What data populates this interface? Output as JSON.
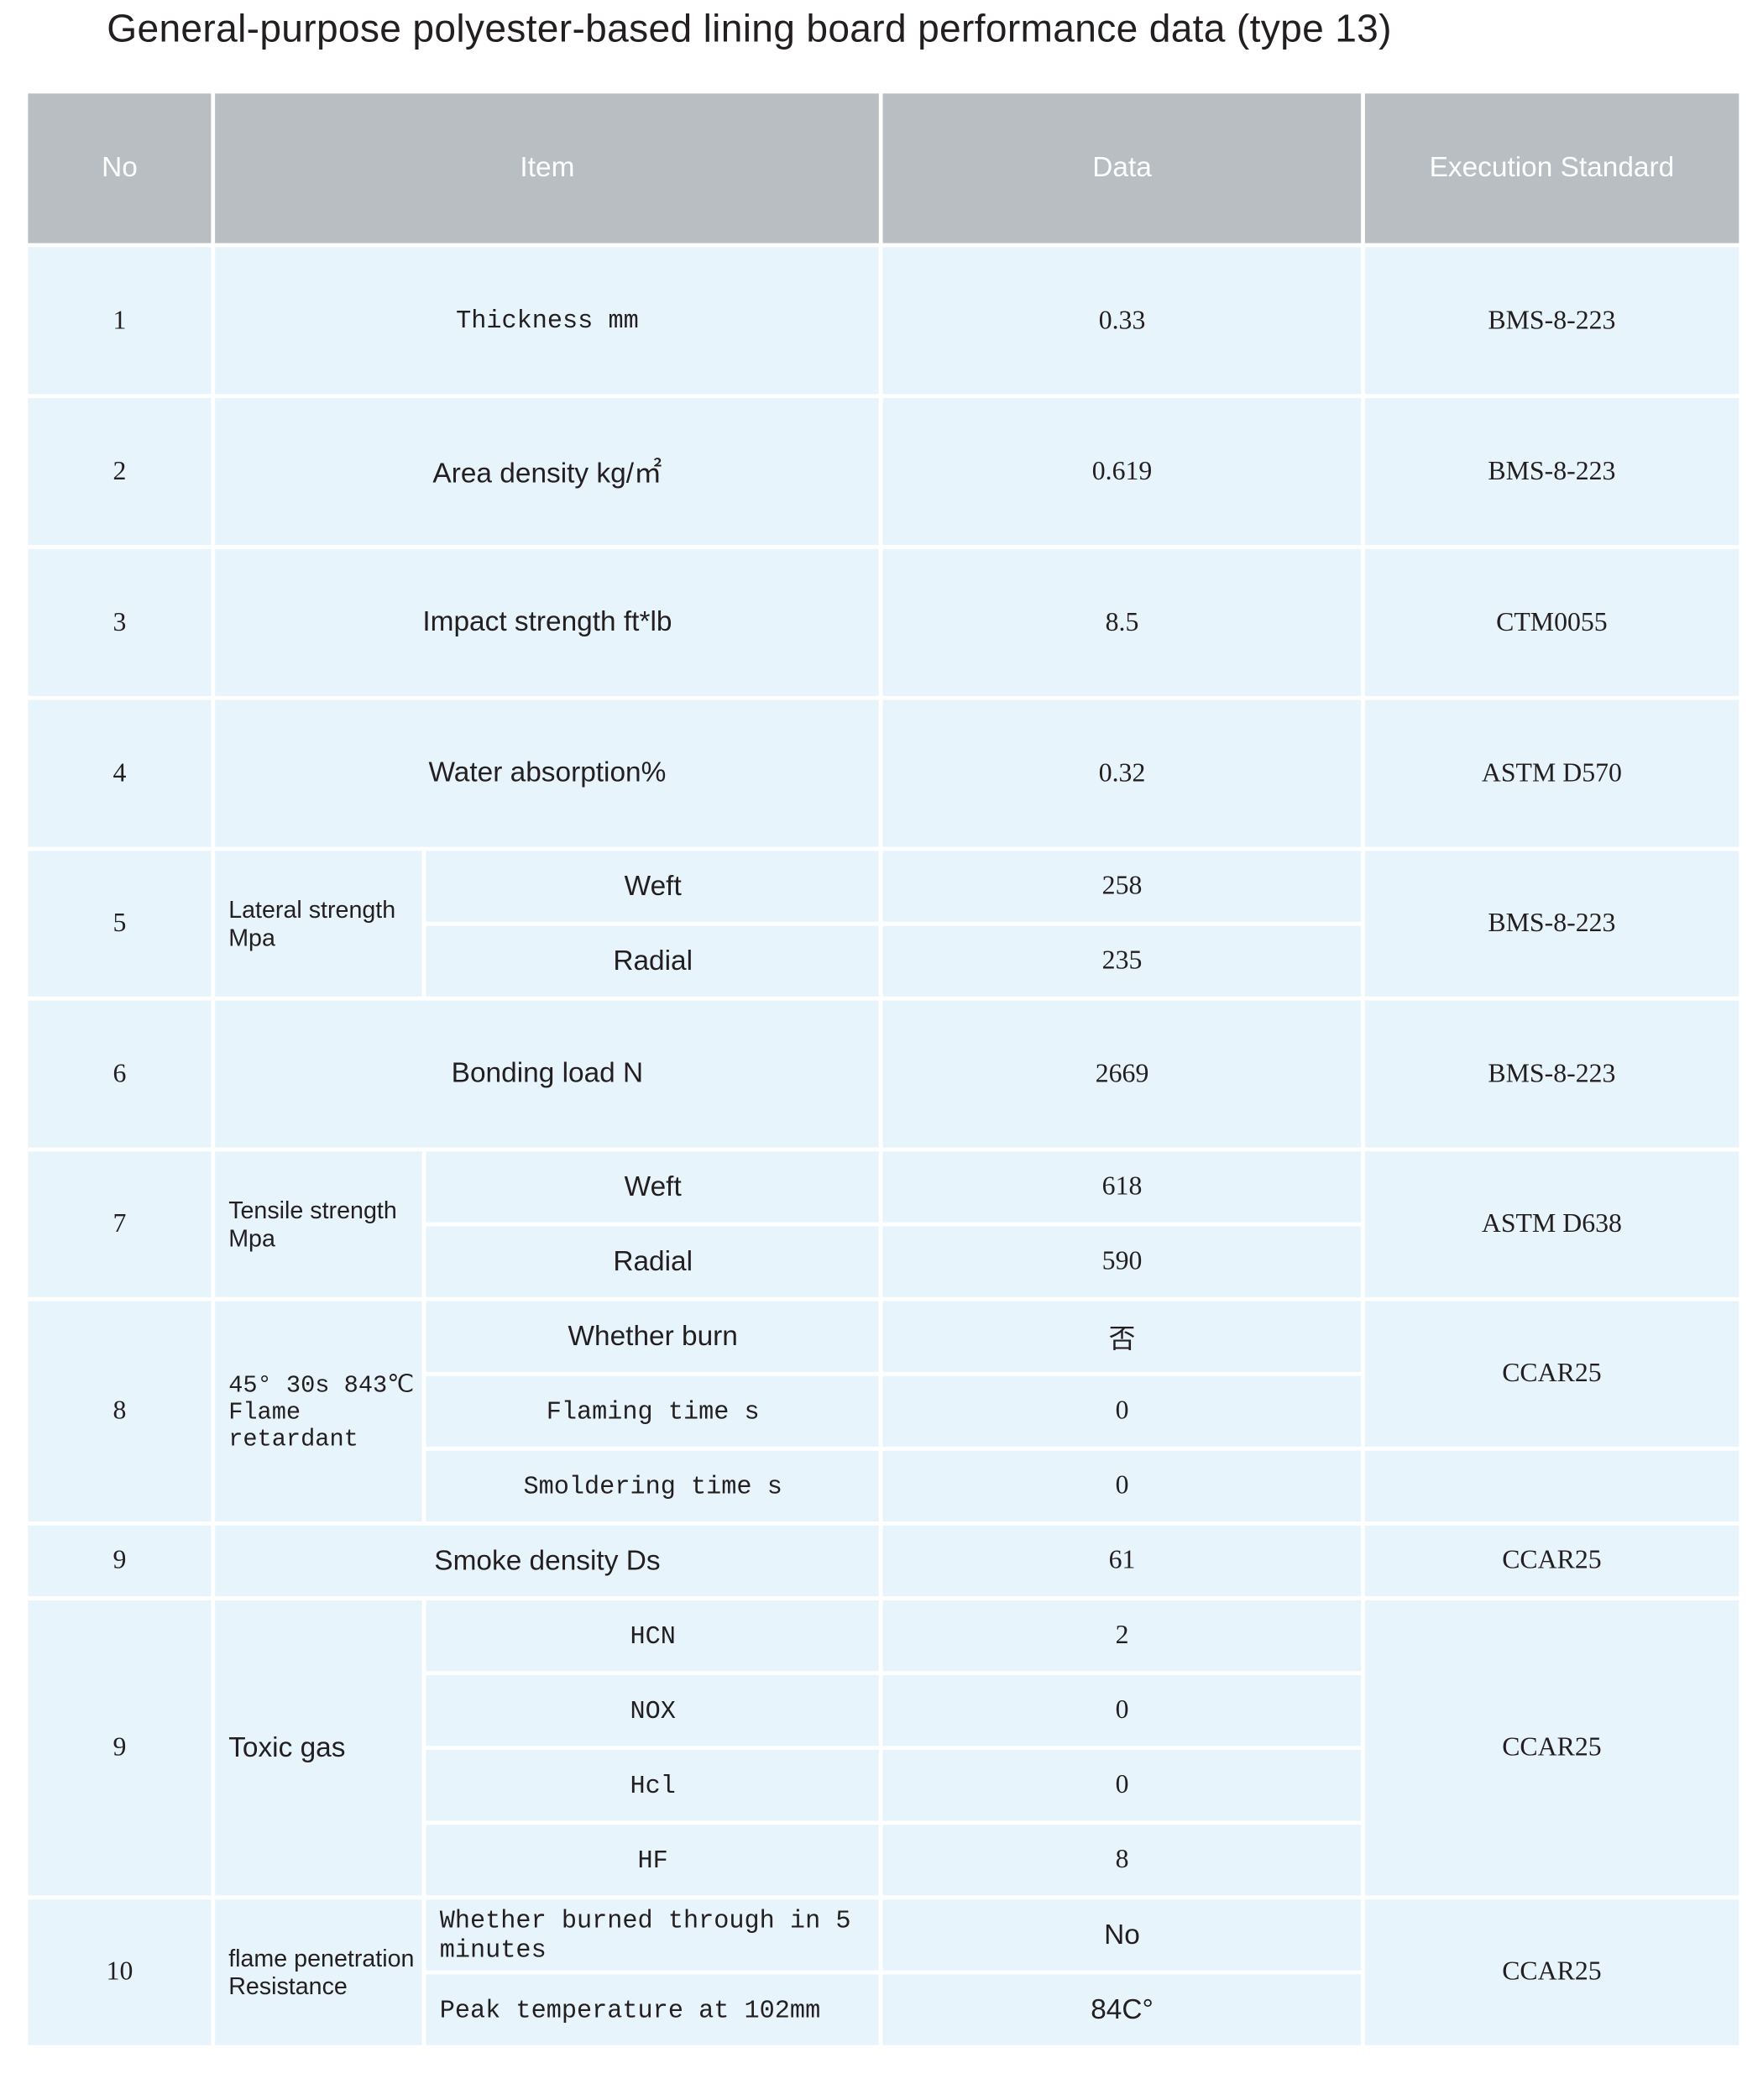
{
  "title": "General-purpose polyester-based lining board performance data (type 13)",
  "colors": {
    "header_bg": "#b8bec1",
    "cell_bg": "#e8f4fc",
    "border": "#ffffff"
  },
  "headers": {
    "no": "No",
    "item": "Item",
    "data": "Data",
    "standard": "Execution Standard"
  },
  "rows": [
    {
      "no": "1",
      "item": "Thickness  mm",
      "data": "0.33",
      "standard": "BMS-8-223",
      "item_style": "mono"
    },
    {
      "no": "2",
      "item": "Area density kg/㎡",
      "data": "0.619",
      "standard": "BMS-8-223",
      "item_style": "sans"
    },
    {
      "no": "3",
      "item": "Impact strength ft*lb",
      "data": "8.5",
      "standard": "CTM0055",
      "item_style": "sans"
    },
    {
      "no": "4",
      "item": "Water absorption%",
      "data": "0.32",
      "standard": "ASTM D570",
      "item_style": "sans"
    },
    {
      "no": "5",
      "item": "Lateral strength Mpa",
      "subs": [
        {
          "label": "Weft",
          "data": "258"
        },
        {
          "label": "Radial",
          "data": "235"
        }
      ],
      "standard": "BMS-8-223",
      "item_style": "sans small left",
      "sub_style": "sans"
    },
    {
      "no": "6",
      "item": "Bonding load N",
      "data": "2669",
      "standard": "BMS-8-223",
      "item_style": "sans"
    },
    {
      "no": "7",
      "item": "Tensile strength Mpa",
      "subs": [
        {
          "label": "Weft",
          "data": "618"
        },
        {
          "label": "Radial",
          "data": "590"
        }
      ],
      "standard": "ASTM D638",
      "item_style": "sans small left",
      "sub_style": "sans"
    },
    {
      "no": "8",
      "item": "45°  30s  843℃ Flame retardant",
      "subs": [
        {
          "label": "Whether burn",
          "data": "否",
          "style": "sans"
        },
        {
          "label": "Flaming time  s",
          "data": "0",
          "style": "mono"
        },
        {
          "label": "Smoldering time s",
          "data": "0",
          "style": "mono"
        }
      ],
      "standard_cells": [
        "CCAR25",
        ""
      ],
      "item_style": "mono small left"
    },
    {
      "no": "9",
      "item": "Smoke density  Ds",
      "data": "61",
      "standard": "CCAR25",
      "item_style": "sans",
      "short": true
    },
    {
      "no": "9",
      "item": "Toxic gas",
      "subs": [
        {
          "label": "HCN",
          "data": "2"
        },
        {
          "label": "NOX",
          "data": "0"
        },
        {
          "label": "Hcl",
          "data": "0"
        },
        {
          "label": "HF",
          "data": "8"
        }
      ],
      "standard": "CCAR25",
      "item_style": "sans left",
      "sub_style": "mono"
    },
    {
      "no": "10",
      "item": "flame penetration Resistance",
      "subs": [
        {
          "label": "Whether burned through in 5 minutes",
          "data": "No",
          "data_style": "sans"
        },
        {
          "label": "Peak temperature at 102mm",
          "data": "84C°",
          "data_style": "sans"
        }
      ],
      "standard": "CCAR25",
      "item_style": "sans small left",
      "sub_style": "mono left"
    }
  ]
}
